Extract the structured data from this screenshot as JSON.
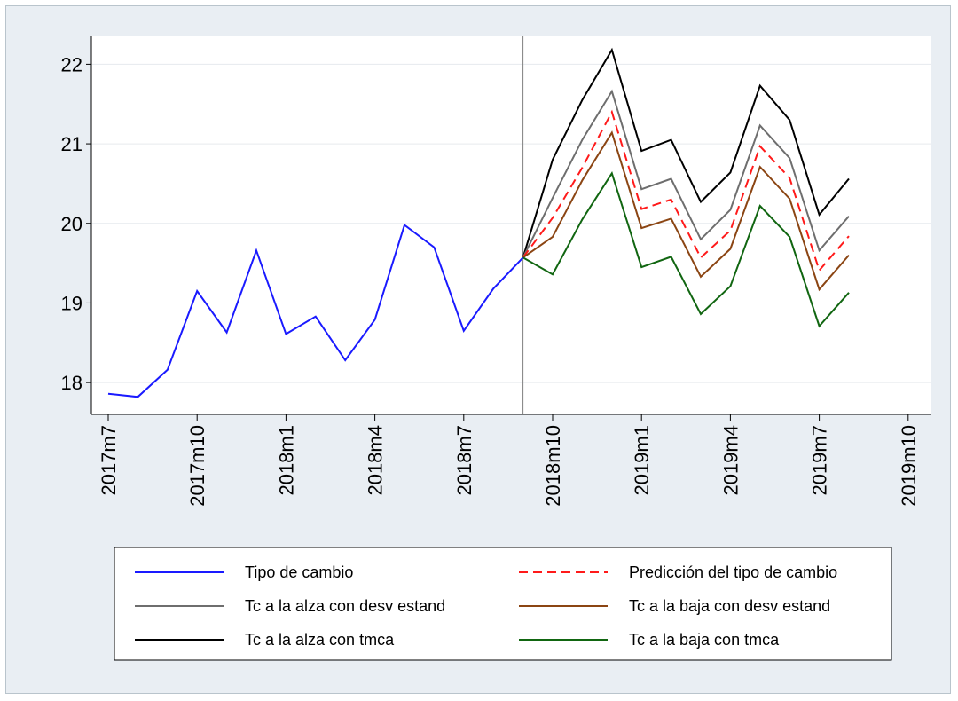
{
  "chart_data": {
    "type": "line",
    "title": "",
    "xlabel": "",
    "ylabel": "",
    "ylim": [
      17.6,
      22.35
    ],
    "y_ticks": [
      18,
      19,
      20,
      21,
      22
    ],
    "x_ticks": [
      "2017m7",
      "2017m10",
      "2018m1",
      "2018m4",
      "2018m7",
      "2018m10",
      "2019m1",
      "2019m4",
      "2019m7",
      "2019m10"
    ],
    "forecast_start": "2018m9",
    "grid": true,
    "legend_position": "bottom",
    "series": [
      {
        "name": "Tipo de cambio",
        "color": "#1a1aff",
        "dash": "solid",
        "points": [
          [
            "2017m7",
            17.86
          ],
          [
            "2017m8",
            17.82
          ],
          [
            "2017m9",
            18.16
          ],
          [
            "2017m10",
            19.15
          ],
          [
            "2017m11",
            18.63
          ],
          [
            "2017m12",
            19.66
          ],
          [
            "2018m1",
            18.61
          ],
          [
            "2018m2",
            18.83
          ],
          [
            "2018m3",
            18.28
          ],
          [
            "2018m4",
            18.79
          ],
          [
            "2018m5",
            19.98
          ],
          [
            "2018m6",
            19.7
          ],
          [
            "2018m7",
            18.65
          ],
          [
            "2018m8",
            19.18
          ],
          [
            "2018m9",
            19.57
          ]
        ]
      },
      {
        "name": "Predicción del tipo de cambio",
        "color": "#ff1a1a",
        "dash": "dashed",
        "points": [
          [
            "2018m9",
            19.57
          ],
          [
            "2018m10",
            20.07
          ],
          [
            "2018m11",
            20.7
          ],
          [
            "2018m12",
            21.4
          ],
          [
            "2019m1",
            20.18
          ],
          [
            "2019m2",
            20.3
          ],
          [
            "2019m3",
            19.57
          ],
          [
            "2019m4",
            19.91
          ],
          [
            "2019m5",
            20.97
          ],
          [
            "2019m6",
            20.57
          ],
          [
            "2019m7",
            19.41
          ],
          [
            "2019m8",
            19.84
          ]
        ]
      },
      {
        "name": "Tc a la alza con desv estand",
        "color": "#6e6e6e",
        "dash": "solid",
        "points": [
          [
            "2018m9",
            19.57
          ],
          [
            "2018m10",
            20.32
          ],
          [
            "2018m11",
            21.05
          ],
          [
            "2018m12",
            21.66
          ],
          [
            "2019m1",
            20.43
          ],
          [
            "2019m2",
            20.56
          ],
          [
            "2019m3",
            19.8
          ],
          [
            "2019m4",
            20.17
          ],
          [
            "2019m5",
            21.23
          ],
          [
            "2019m6",
            20.82
          ],
          [
            "2019m7",
            19.66
          ],
          [
            "2019m8",
            20.09
          ]
        ]
      },
      {
        "name": "Tc a la baja con desv estand",
        "color": "#8b4513",
        "dash": "solid",
        "points": [
          [
            "2018m9",
            19.57
          ],
          [
            "2018m10",
            19.83
          ],
          [
            "2018m11",
            20.54
          ],
          [
            "2018m12",
            21.14
          ],
          [
            "2019m1",
            19.94
          ],
          [
            "2019m2",
            20.06
          ],
          [
            "2019m3",
            19.33
          ],
          [
            "2019m4",
            19.68
          ],
          [
            "2019m5",
            20.71
          ],
          [
            "2019m6",
            20.31
          ],
          [
            "2019m7",
            19.17
          ],
          [
            "2019m8",
            19.6
          ]
        ]
      },
      {
        "name": "Tc a la alza con tmca",
        "color": "#000000",
        "dash": "solid",
        "points": [
          [
            "2018m9",
            19.57
          ],
          [
            "2018m10",
            20.8
          ],
          [
            "2018m11",
            21.55
          ],
          [
            "2018m12",
            22.18
          ],
          [
            "2019m1",
            20.91
          ],
          [
            "2019m2",
            21.05
          ],
          [
            "2019m3",
            20.27
          ],
          [
            "2019m4",
            20.64
          ],
          [
            "2019m5",
            21.73
          ],
          [
            "2019m6",
            21.3
          ],
          [
            "2019m7",
            20.11
          ],
          [
            "2019m8",
            20.56
          ]
        ]
      },
      {
        "name": "Tc a la baja con tmca",
        "color": "#116611",
        "dash": "solid",
        "points": [
          [
            "2018m9",
            19.57
          ],
          [
            "2018m10",
            19.36
          ],
          [
            "2018m11",
            20.05
          ],
          [
            "2018m12",
            20.63
          ],
          [
            "2019m1",
            19.45
          ],
          [
            "2019m2",
            19.58
          ],
          [
            "2019m3",
            18.86
          ],
          [
            "2019m4",
            19.21
          ],
          [
            "2019m5",
            20.22
          ],
          [
            "2019m6",
            19.83
          ],
          [
            "2019m7",
            18.71
          ],
          [
            "2019m8",
            19.13
          ]
        ]
      }
    ],
    "legend_order": [
      0,
      1,
      2,
      3,
      4,
      5
    ]
  }
}
